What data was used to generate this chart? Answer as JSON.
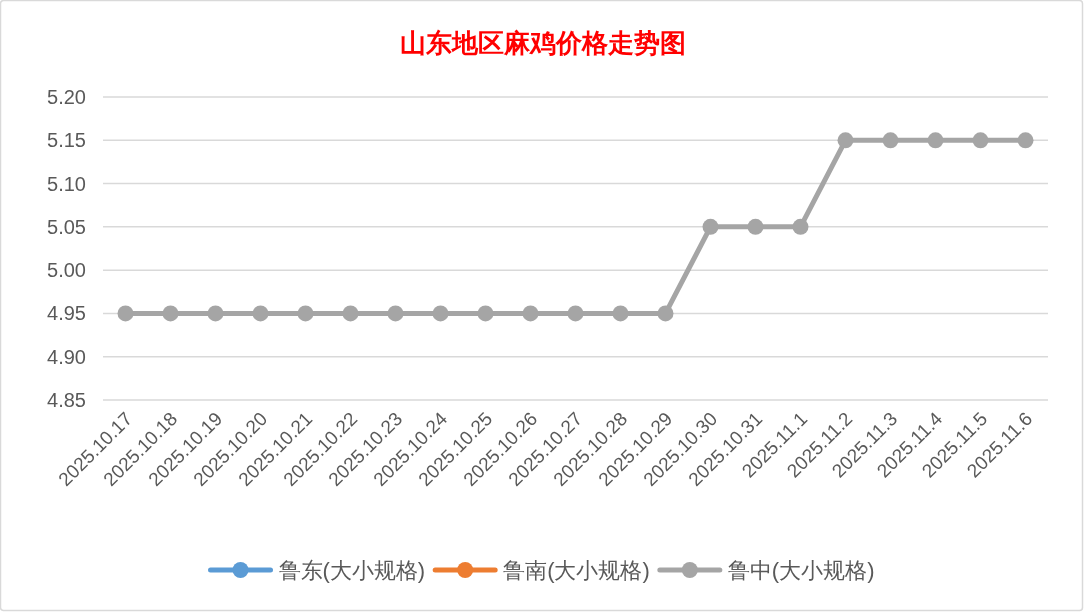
{
  "chart_data": {
    "type": "line",
    "title": "山东地区麻鸡价格走势图",
    "categories": [
      "2025.10.17",
      "2025.10.18",
      "2025.10.19",
      "2025.10.20",
      "2025.10.21",
      "2025.10.22",
      "2025.10.23",
      "2025.10.24",
      "2025.10.25",
      "2025.10.26",
      "2025.10.27",
      "2025.10.28",
      "2025.10.29",
      "2025.10.30",
      "2025.10.31",
      "2025.11.1",
      "2025.11.2",
      "2025.11.3",
      "2025.11.4",
      "2025.11.5",
      "2025.11.6"
    ],
    "series": [
      {
        "name": "鲁东(大小规格)",
        "color": "#5b9bd5",
        "values": [
          null,
          null,
          null,
          null,
          null,
          null,
          null,
          null,
          null,
          null,
          null,
          null,
          null,
          null,
          null,
          null,
          null,
          null,
          null,
          null,
          null
        ]
      },
      {
        "name": "鲁南(大小规格)",
        "color": "#ed7d31",
        "values": [
          null,
          null,
          null,
          null,
          null,
          null,
          null,
          null,
          null,
          null,
          null,
          null,
          null,
          null,
          null,
          null,
          null,
          null,
          null,
          null,
          null
        ]
      },
      {
        "name": "鲁中(大小规格)",
        "color": "#a5a5a5",
        "values": [
          4.95,
          4.95,
          4.95,
          4.95,
          4.95,
          4.95,
          4.95,
          4.95,
          4.95,
          4.95,
          4.95,
          4.95,
          4.95,
          5.05,
          5.05,
          5.05,
          5.15,
          5.15,
          5.15,
          5.15,
          5.15
        ]
      }
    ],
    "ylim": [
      4.85,
      5.2
    ],
    "yticks": [
      4.85,
      {
        "value": 4.9,
        "label": "4.90"
      },
      4.95,
      {
        "value": 5.0,
        "label": "5.00"
      },
      5.05,
      {
        "value": 5.1,
        "label": "5.10"
      },
      5.15,
      {
        "value": 5.2,
        "label": "5.20"
      }
    ],
    "grid": "y",
    "legend": "bottom",
    "marker": "circle",
    "line_style": "solid"
  }
}
